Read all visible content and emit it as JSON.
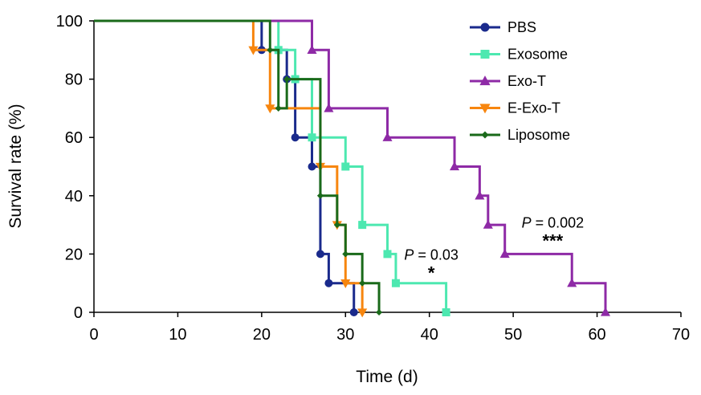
{
  "chart_data": {
    "type": "line",
    "subtype": "kaplan-meier-step",
    "xlabel": "Time (d)",
    "ylabel": "Survival rate (%)",
    "xlim": [
      0,
      70
    ],
    "ylim": [
      0,
      100
    ],
    "xticks": [
      0,
      10,
      20,
      30,
      40,
      50,
      60,
      70
    ],
    "yticks": [
      0,
      20,
      40,
      60,
      80,
      100
    ],
    "grid": false,
    "legend_position": "top-right",
    "series": [
      {
        "name": "PBS",
        "color": "#1a2a8c",
        "marker": "circle",
        "x": [
          0,
          20,
          23,
          24,
          26,
          27,
          28,
          31
        ],
        "y": [
          100,
          90,
          80,
          60,
          50,
          20,
          10,
          0
        ]
      },
      {
        "name": "Exosome",
        "color": "#4de8b0",
        "marker": "square",
        "x": [
          0,
          22,
          24,
          26,
          30,
          32,
          35,
          36,
          42
        ],
        "y": [
          100,
          90,
          80,
          60,
          50,
          30,
          20,
          10,
          0
        ]
      },
      {
        "name": "Exo-T",
        "color": "#8e2aa6",
        "marker": "triangle-up",
        "x": [
          0,
          26,
          28,
          35,
          43,
          46,
          47,
          49,
          57,
          61
        ],
        "y": [
          100,
          90,
          70,
          60,
          50,
          40,
          30,
          20,
          10,
          0
        ]
      },
      {
        "name": "E-Exo-T",
        "color": "#f7860f",
        "marker": "triangle-down",
        "x": [
          0,
          19,
          21,
          27,
          29,
          30,
          32
        ],
        "y": [
          100,
          90,
          70,
          50,
          30,
          10,
          0
        ]
      },
      {
        "name": "Liposome",
        "color": "#1a6a1a",
        "marker": "diamond",
        "x": [
          0,
          21,
          22,
          23,
          27,
          29,
          30,
          32,
          34
        ],
        "y": [
          100,
          90,
          70,
          80,
          40,
          30,
          20,
          10,
          0
        ]
      }
    ],
    "annotations": [
      {
        "p_label": "P",
        "p_value": " = 0.03",
        "stars": "*",
        "x": 37,
        "y": 18
      },
      {
        "p_label": "P",
        "p_value": " = 0.002",
        "stars": "***",
        "x": 51,
        "y": 29
      }
    ]
  }
}
